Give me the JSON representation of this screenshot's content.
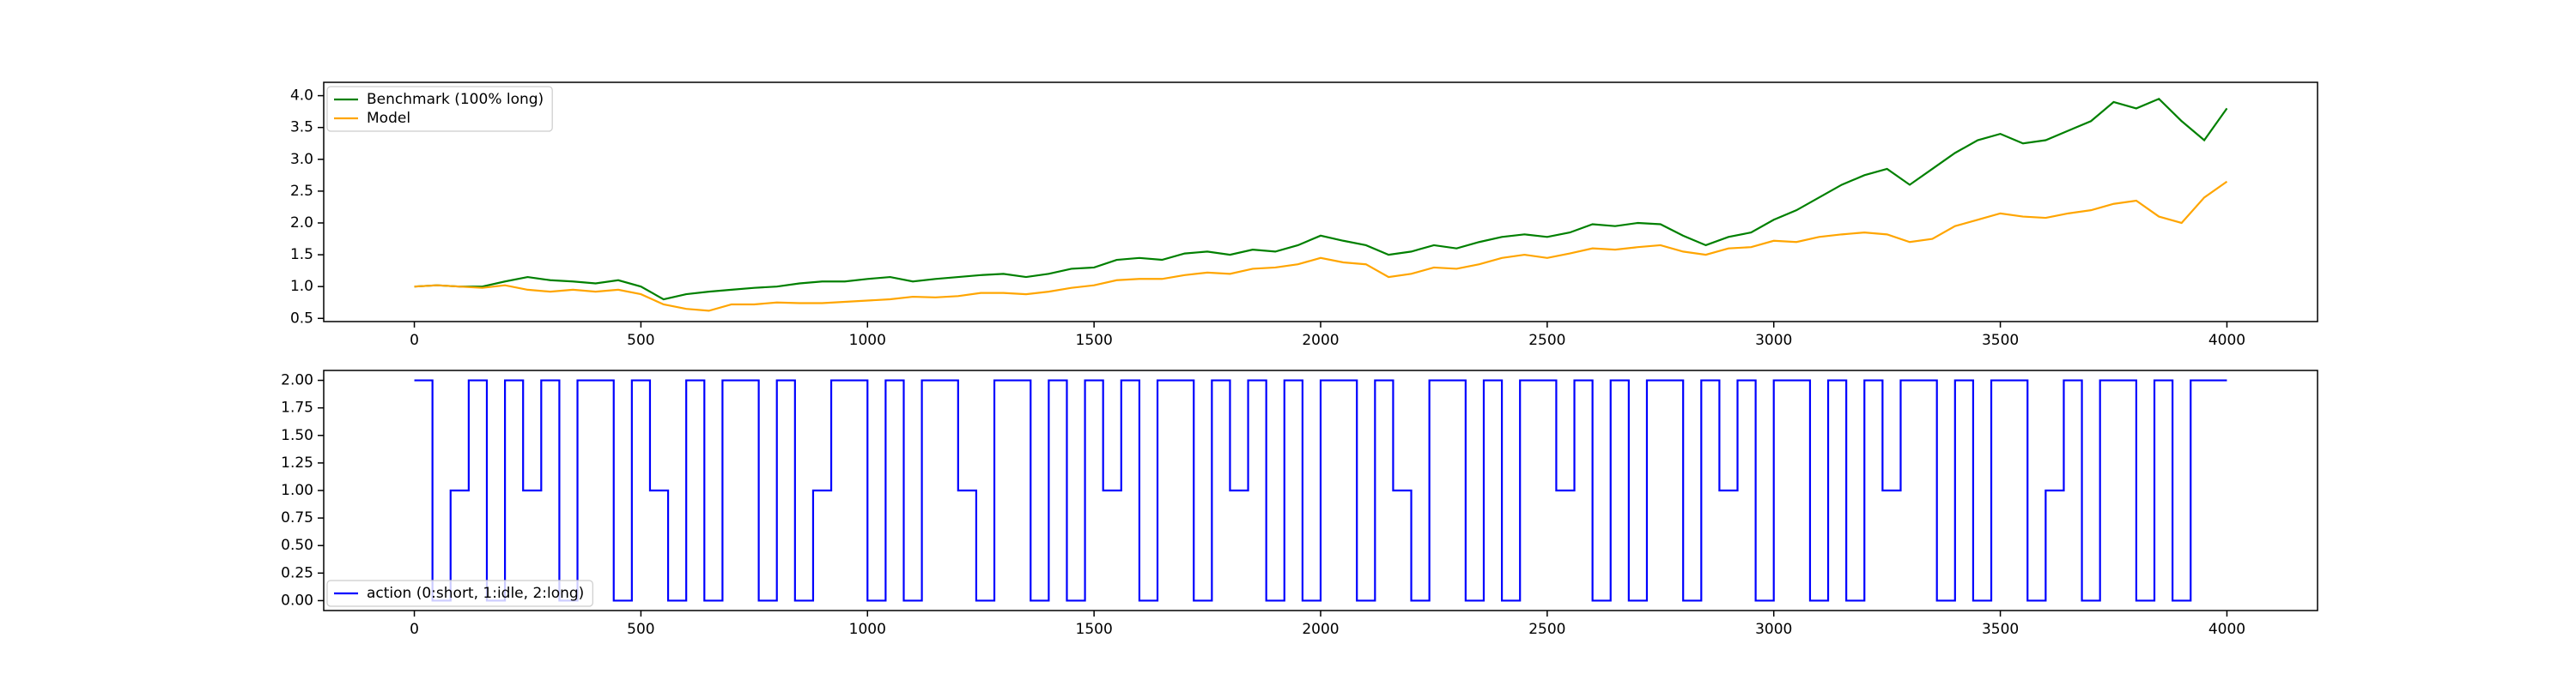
{
  "chart_data": [
    {
      "type": "line",
      "legend": "upper left",
      "xlim": [
        -200,
        4200
      ],
      "ylim": [
        0.45,
        4.21
      ],
      "xticks": [
        0,
        500,
        1000,
        1500,
        2000,
        2500,
        3000,
        3500,
        4000
      ],
      "yticks": [
        0.5,
        {
          "value": 1,
          "label": "1.0"
        },
        1.5,
        {
          "value": 2,
          "label": "2.0"
        },
        2.5,
        {
          "value": 3,
          "label": "3.0"
        },
        3.5,
        {
          "value": 4,
          "label": "4.0"
        }
      ],
      "x": [
        0,
        50,
        100,
        150,
        200,
        250,
        300,
        350,
        400,
        450,
        500,
        550,
        600,
        650,
        700,
        750,
        800,
        850,
        900,
        950,
        1000,
        1050,
        1100,
        1150,
        1200,
        1250,
        1300,
        1350,
        1400,
        1450,
        1500,
        1550,
        1600,
        1650,
        1700,
        1750,
        1800,
        1850,
        1900,
        1950,
        2000,
        2050,
        2100,
        2150,
        2200,
        2250,
        2300,
        2350,
        2400,
        2450,
        2500,
        2550,
        2600,
        2650,
        2700,
        2750,
        2800,
        2850,
        2900,
        2950,
        3000,
        3050,
        3100,
        3150,
        3200,
        3250,
        3300,
        3350,
        3400,
        3450,
        3500,
        3550,
        3600,
        3650,
        3700,
        3750,
        3800,
        3850,
        3900,
        3950,
        4000
      ],
      "series": [
        {
          "name": "Benchmark (100% long)",
          "color": "#008000",
          "values": [
            1.0,
            1.02,
            1.0,
            1.0,
            1.08,
            1.15,
            1.1,
            1.08,
            1.05,
            1.1,
            1.0,
            0.8,
            0.88,
            0.92,
            0.95,
            0.98,
            1.0,
            1.05,
            1.08,
            1.08,
            1.12,
            1.15,
            1.08,
            1.12,
            1.15,
            1.18,
            1.2,
            1.15,
            1.2,
            1.28,
            1.3,
            1.42,
            1.45,
            1.42,
            1.52,
            1.55,
            1.5,
            1.58,
            1.55,
            1.65,
            1.8,
            1.72,
            1.65,
            1.5,
            1.55,
            1.65,
            1.6,
            1.7,
            1.78,
            1.82,
            1.78,
            1.85,
            1.98,
            1.95,
            2.0,
            1.98,
            1.8,
            1.65,
            1.78,
            1.85,
            2.05,
            2.2,
            2.4,
            2.6,
            2.75,
            2.85,
            2.6,
            2.85,
            3.1,
            3.3,
            3.4,
            3.25,
            3.3,
            3.45,
            3.6,
            3.9,
            3.8,
            3.95,
            3.6,
            3.3,
            3.8
          ]
        },
        {
          "name": "Model",
          "color": "#ffa500",
          "values": [
            1.0,
            1.02,
            1.0,
            0.98,
            1.02,
            0.95,
            0.92,
            0.95,
            0.92,
            0.95,
            0.88,
            0.72,
            0.65,
            0.62,
            0.72,
            0.72,
            0.75,
            0.74,
            0.74,
            0.76,
            0.78,
            0.8,
            0.84,
            0.83,
            0.85,
            0.9,
            0.9,
            0.88,
            0.92,
            0.98,
            1.02,
            1.1,
            1.12,
            1.12,
            1.18,
            1.22,
            1.2,
            1.28,
            1.3,
            1.35,
            1.45,
            1.38,
            1.35,
            1.15,
            1.2,
            1.3,
            1.28,
            1.35,
            1.45,
            1.5,
            1.45,
            1.52,
            1.6,
            1.58,
            1.62,
            1.65,
            1.55,
            1.5,
            1.6,
            1.62,
            1.72,
            1.7,
            1.78,
            1.82,
            1.85,
            1.82,
            1.7,
            1.75,
            1.95,
            2.05,
            2.15,
            2.1,
            2.08,
            2.15,
            2.2,
            2.3,
            2.35,
            2.1,
            2.0,
            2.4,
            2.65
          ]
        }
      ]
    },
    {
      "type": "line",
      "drawstyle": "steps",
      "legend": "lower left",
      "xlim": [
        -200,
        4200
      ],
      "ylim": [
        -0.09,
        2.09
      ],
      "xticks": [
        0,
        500,
        1000,
        1500,
        2000,
        2500,
        3000,
        3500,
        4000
      ],
      "yticks": [
        {
          "value": 0,
          "label": "0.00"
        },
        {
          "value": 0.25,
          "label": "0.25"
        },
        {
          "value": 0.5,
          "label": "0.50"
        },
        {
          "value": 0.75,
          "label": "0.75"
        },
        {
          "value": 1,
          "label": "1.00"
        },
        {
          "value": 1.25,
          "label": "1.25"
        },
        {
          "value": 1.5,
          "label": "1.50"
        },
        {
          "value": 1.75,
          "label": "1.75"
        },
        {
          "value": 2,
          "label": "2.00"
        }
      ],
      "x": [
        0,
        40,
        80,
        120,
        160,
        200,
        240,
        280,
        320,
        360,
        400,
        440,
        480,
        520,
        560,
        600,
        640,
        680,
        720,
        760,
        800,
        840,
        880,
        920,
        960,
        1000,
        1040,
        1080,
        1120,
        1160,
        1200,
        1240,
        1280,
        1320,
        1360,
        1400,
        1440,
        1480,
        1520,
        1560,
        1600,
        1640,
        1680,
        1720,
        1760,
        1800,
        1840,
        1880,
        1920,
        1960,
        2000,
        2040,
        2080,
        2120,
        2160,
        2200,
        2240,
        2280,
        2320,
        2360,
        2400,
        2440,
        2480,
        2520,
        2560,
        2600,
        2640,
        2680,
        2720,
        2760,
        2800,
        2840,
        2880,
        2920,
        2960,
        3000,
        3040,
        3080,
        3120,
        3160,
        3200,
        3240,
        3280,
        3320,
        3360,
        3400,
        3440,
        3480,
        3520,
        3560,
        3600,
        3640,
        3680,
        3720,
        3760,
        3800,
        3840,
        3880,
        3920,
        3960,
        4000
      ],
      "series": [
        {
          "name": "action (0:short, 1:idle, 2:long)",
          "color": "#0000ff",
          "values": [
            2,
            2,
            0,
            1,
            2,
            0,
            2,
            1,
            2,
            0,
            2,
            2,
            0,
            2,
            1,
            0,
            2,
            0,
            2,
            2,
            0,
            2,
            0,
            1,
            2,
            2,
            0,
            2,
            0,
            2,
            2,
            1,
            0,
            2,
            2,
            0,
            2,
            0,
            2,
            1,
            2,
            0,
            2,
            2,
            0,
            2,
            1,
            2,
            0,
            2,
            0,
            2,
            2,
            0,
            2,
            1,
            0,
            2,
            2,
            0,
            2,
            0,
            2,
            2,
            1,
            2,
            0,
            2,
            0,
            2,
            2,
            0,
            2,
            1,
            2,
            0,
            2,
            2,
            0,
            2,
            0,
            2,
            1,
            2,
            2,
            0,
            2,
            0,
            2,
            2,
            0,
            1,
            2,
            0,
            2,
            2,
            0,
            2,
            0,
            2,
            2
          ]
        }
      ]
    }
  ]
}
